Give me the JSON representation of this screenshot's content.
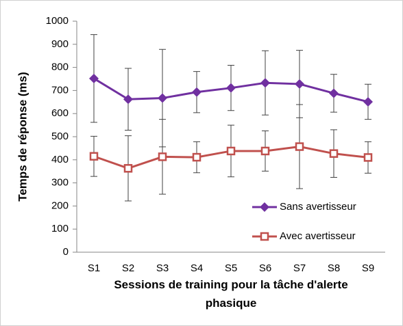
{
  "chart_data": {
    "type": "line",
    "xlabel": "Sessions de training pour la tâche d'alerte phasique",
    "ylabel": "Temps de réponse (ms)",
    "categories": [
      "S1",
      "S2",
      "S3",
      "S4",
      "S5",
      "S6",
      "S7",
      "S8",
      "S9"
    ],
    "series": [
      {
        "name": "Sans avertisseur",
        "color": "#7030a0",
        "marker": "diamond",
        "values": [
          752,
          662,
          667,
          693,
          711,
          733,
          728,
          688,
          651
        ],
        "errors": [
          190,
          134,
          211,
          89,
          98,
          139,
          146,
          82,
          76
        ]
      },
      {
        "name": "Avec avertisseur",
        "color": "#c0504d",
        "marker": "square",
        "values": [
          415,
          363,
          413,
          411,
          438,
          438,
          457,
          427,
          410
        ],
        "errors": [
          87,
          141,
          162,
          67,
          112,
          87,
          182,
          103,
          68
        ]
      }
    ],
    "ylim": [
      0,
      1000
    ],
    "yticks": [
      0,
      100,
      200,
      300,
      400,
      500,
      600,
      700,
      800,
      900,
      1000
    ],
    "grid": false,
    "legend": "lower right"
  }
}
